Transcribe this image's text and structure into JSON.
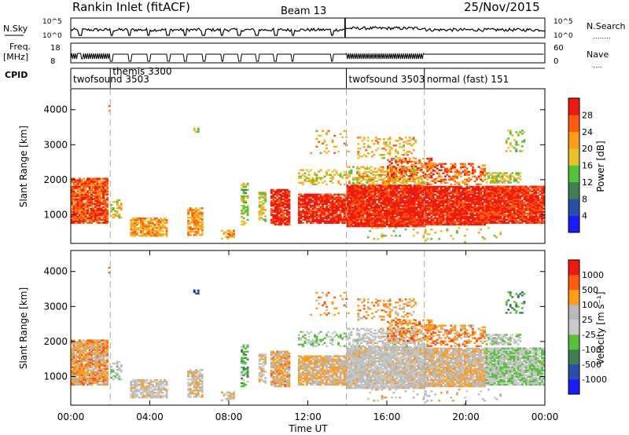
{
  "header": {
    "station": "Rankin Inlet (fitACF)",
    "beam": "Beam 13",
    "date": "25/Nov/2015"
  },
  "aux_labels": {
    "nsky": "N.Sky",
    "freq": "Freq.",
    "freq_unit": "[MHz]",
    "cpid": "CPID",
    "nsearch": "N.Search",
    "nsearch_dots": "........",
    "nave": "Nave",
    "nave_dots": "....",
    "nsky_ticks": [
      "10^5",
      "10^0"
    ],
    "nsearch_ticks": [
      "10^5",
      "10^0"
    ],
    "freq_ticks": [
      "18",
      "8"
    ],
    "nave_ticks": [
      "60",
      "0"
    ]
  },
  "cpid_segments": [
    {
      "label": "twofsound 3503",
      "start_hour": 0.0
    },
    {
      "label": "themis 3300",
      "start_hour": 2.0
    },
    {
      "label": "twofsound 3503",
      "start_hour": 13.95
    },
    {
      "label": "normal (fast) 151",
      "start_hour": 17.9
    }
  ],
  "colors": {
    "power": [
      "#1a1aff",
      "#2a4fa8",
      "#3f7f4f",
      "#55c23a",
      "#e8c22e",
      "#ff9c1a",
      "#ff5a10",
      "#ee1a10"
    ],
    "velocity": [
      "#ee1a10",
      "#ff5a10",
      "#ff9c1a",
      "#b9b9b9",
      "#c9c9c9",
      "#55c23a",
      "#3f7f4f",
      "#2a4fa8",
      "#1a1aff"
    ]
  },
  "chart_data": [
    {
      "type": "heatmap",
      "panel": "power",
      "ylabel": "Slant Range [km]",
      "ylim": [
        180,
        4600
      ],
      "yticks": [
        "1000",
        "2000",
        "3000",
        "4000"
      ],
      "xlim": [
        0,
        24
      ],
      "colorbar_label": "Power [dB]",
      "colorbar_ticks": [
        "4",
        "8",
        "12",
        "16",
        "20",
        "24",
        "28"
      ]
    },
    {
      "type": "heatmap",
      "panel": "velocity",
      "ylabel": "Slant Range [km]",
      "ylim": [
        180,
        4600
      ],
      "yticks": [
        "1000",
        "2000",
        "3000",
        "4000"
      ],
      "xlim": [
        0,
        24
      ],
      "xticks": [
        "00:00",
        "04:00",
        "08:00",
        "12:00",
        "16:00",
        "20:00",
        "00:00"
      ],
      "xlabel": "Time UT",
      "colorbar_label": "Velocity [m s⁻¹]",
      "colorbar_ticks": [
        "1000",
        "500",
        "100",
        "25",
        "-25",
        "-100",
        "-500",
        "-1000"
      ]
    }
  ]
}
